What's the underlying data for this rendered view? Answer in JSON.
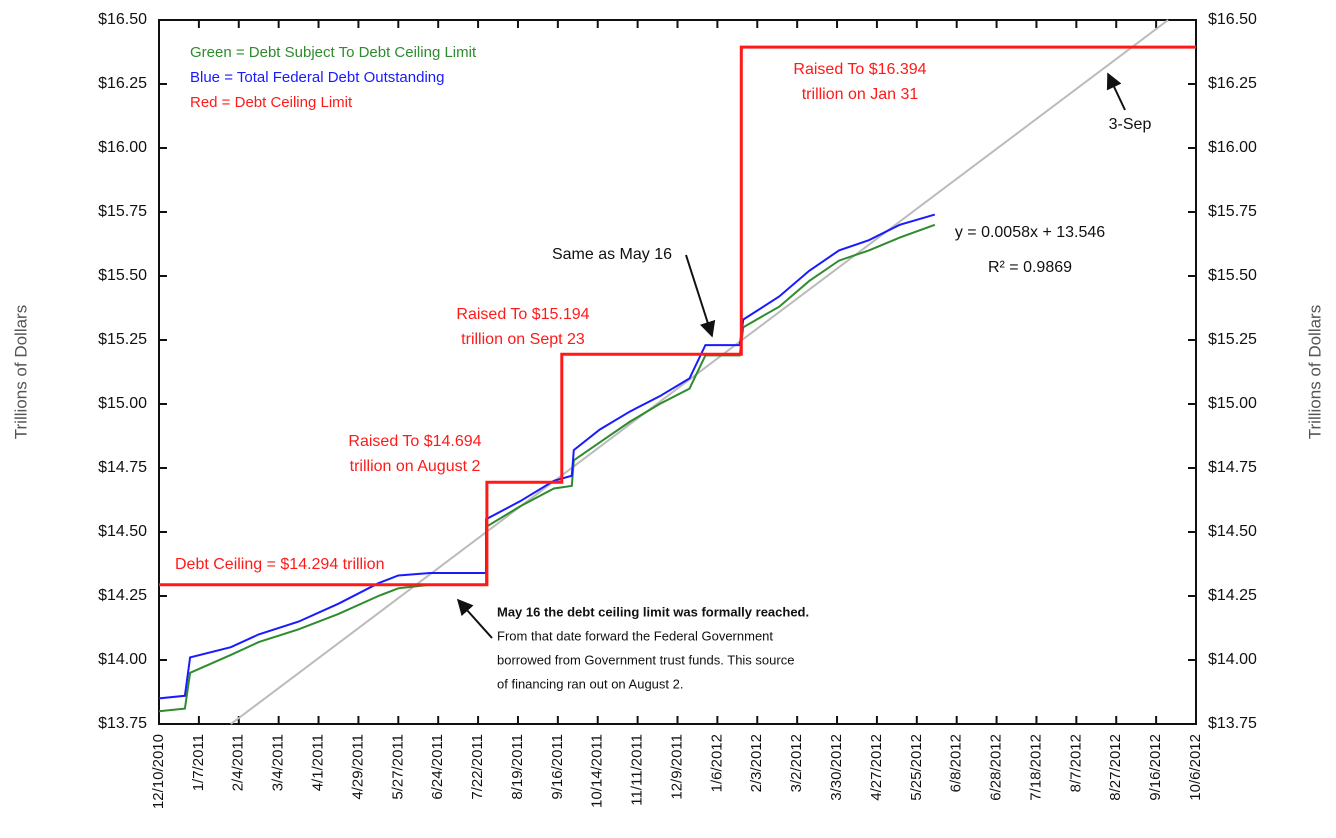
{
  "chart_data": {
    "type": "line",
    "ylabel": "Trillions of Dollars",
    "y2label": "Trillions of Dollars",
    "ylim": [
      13.75,
      16.5
    ],
    "yticks": [
      {
        "value": 13.75,
        "label": "$13.75"
      },
      {
        "value": 14.0,
        "label": "$14.00"
      },
      {
        "value": 14.25,
        "label": "$14.25"
      },
      {
        "value": 14.5,
        "label": "$14.50"
      },
      {
        "value": 14.75,
        "label": "$14.75"
      },
      {
        "value": 15.0,
        "label": "$15.00"
      },
      {
        "value": 15.25,
        "label": "$15.25"
      },
      {
        "value": 15.5,
        "label": "$15.50"
      },
      {
        "value": 15.75,
        "label": "$15.75"
      },
      {
        "value": 16.0,
        "label": "$16.00"
      },
      {
        "value": 16.25,
        "label": "$16.25"
      },
      {
        "value": 16.5,
        "label": "$16.50"
      }
    ],
    "y2lim": [
      13.75,
      16.5
    ],
    "y2ticks": [
      {
        "value": 13.75,
        "label": "$13.75"
      },
      {
        "value": 14.0,
        "label": "$14.00"
      },
      {
        "value": 14.25,
        "label": "$14.25"
      },
      {
        "value": 14.5,
        "label": "$14.50"
      },
      {
        "value": 14.75,
        "label": "$14.75"
      },
      {
        "value": 15.0,
        "label": "$15.00"
      },
      {
        "value": 15.25,
        "label": "$15.25"
      },
      {
        "value": 15.5,
        "label": "$15.50"
      },
      {
        "value": 15.75,
        "label": "$15.75"
      },
      {
        "value": 16.0,
        "label": "$16.00"
      },
      {
        "value": 16.25,
        "label": "$16.25"
      },
      {
        "value": 16.5,
        "label": "$16.50"
      }
    ],
    "xlim": [
      0,
      26
    ],
    "xticks": [
      {
        "value": 0,
        "label": "12/10/2010"
      },
      {
        "value": 1,
        "label": "1/7/2011"
      },
      {
        "value": 2,
        "label": "2/4/2011"
      },
      {
        "value": 3,
        "label": "3/4/2011"
      },
      {
        "value": 4,
        "label": "4/1/2011"
      },
      {
        "value": 5,
        "label": "4/29/2011"
      },
      {
        "value": 6,
        "label": "5/27/2011"
      },
      {
        "value": 7,
        "label": "6/24/2011"
      },
      {
        "value": 8,
        "label": "7/22/2011"
      },
      {
        "value": 9,
        "label": "8/19/2011"
      },
      {
        "value": 10,
        "label": "9/16/2011"
      },
      {
        "value": 11,
        "label": "10/14/2011"
      },
      {
        "value": 12,
        "label": "11/11/2011"
      },
      {
        "value": 13,
        "label": "12/9/2011"
      },
      {
        "value": 14,
        "label": "1/6/2012"
      },
      {
        "value": 15,
        "label": "2/3/2012"
      },
      {
        "value": 16,
        "label": "3/2/2012"
      },
      {
        "value": 17,
        "label": "3/30/2012"
      },
      {
        "value": 18,
        "label": "4/27/2012"
      },
      {
        "value": 19,
        "label": "5/25/2012"
      },
      {
        "value": 20,
        "label": "6/8/2012"
      },
      {
        "value": 21,
        "label": "6/28/2012"
      },
      {
        "value": 22,
        "label": "7/18/2012"
      },
      {
        "value": 23,
        "label": "8/7/2012"
      },
      {
        "value": 24,
        "label": "8/27/2012"
      },
      {
        "value": 25,
        "label": "9/16/2012"
      },
      {
        "value": 26,
        "label": "10/6/2012"
      }
    ],
    "trendline": {
      "color": "#bbbbbb",
      "x": [
        1.8,
        25.3
      ],
      "values": [
        13.75,
        16.5
      ]
    },
    "series": [
      {
        "name": "Green = Debt Subject To Debt Ceiling Limit",
        "color": "#2e8b2e",
        "x": [
          0,
          0.65,
          0.78,
          1.8,
          2.5,
          3.5,
          4.5,
          5.5,
          6.0,
          6.8,
          8.2,
          8.2,
          9.05,
          9.9,
          10.35,
          10.4,
          11.05,
          11.8,
          12.55,
          13.3,
          13.7,
          14.56,
          14.65,
          15.55,
          16.3,
          17.05,
          17.8,
          18.57,
          19.45
        ],
        "values": [
          13.8,
          13.81,
          13.95,
          14.02,
          14.07,
          14.12,
          14.18,
          14.25,
          14.28,
          14.294,
          14.294,
          14.52,
          14.6,
          14.67,
          14.68,
          14.78,
          14.85,
          14.93,
          15.0,
          15.06,
          15.19,
          15.19,
          15.3,
          15.38,
          15.48,
          15.56,
          15.6,
          15.65,
          15.7
        ]
      },
      {
        "name": "Blue = Total Federal Debt Outstanding",
        "color": "#1a1aff",
        "x": [
          0,
          0.65,
          0.78,
          1.8,
          2.5,
          3.5,
          4.5,
          5.5,
          6.0,
          6.8,
          8.2,
          8.2,
          9.05,
          9.9,
          10.35,
          10.4,
          11.05,
          11.8,
          12.55,
          13.3,
          13.7,
          14.56,
          14.65,
          15.55,
          16.3,
          17.05,
          17.8,
          18.57,
          19.45
        ],
        "values": [
          13.85,
          13.86,
          14.01,
          14.05,
          14.1,
          14.15,
          14.22,
          14.3,
          14.33,
          14.34,
          14.34,
          14.55,
          14.62,
          14.7,
          14.72,
          14.82,
          14.9,
          14.97,
          15.03,
          15.1,
          15.23,
          15.23,
          15.33,
          15.42,
          15.52,
          15.6,
          15.64,
          15.7,
          15.74
        ]
      },
      {
        "name": "Red = Debt Ceiling Limit",
        "color": "#ff1a1a",
        "x": [
          0,
          8.22,
          8.22,
          10.1,
          10.1,
          14.6,
          14.6,
          26
        ],
        "values": [
          14.294,
          14.294,
          14.694,
          14.694,
          15.194,
          15.194,
          16.394,
          16.394
        ]
      }
    ],
    "annotations": [
      {
        "lines": [
          "Raised To $16.394",
          "trillion on Jan 31"
        ]
      },
      {
        "lines": [
          "3-Sep"
        ]
      },
      {
        "lines": [
          "y = 0.0058x + 13.546"
        ]
      },
      {
        "lines": [
          "R² = 0.9869"
        ]
      },
      {
        "lines": [
          "Same as May 16"
        ]
      },
      {
        "lines": [
          "Raised To $15.194",
          "trillion on Sept 23"
        ]
      },
      {
        "lines": [
          "Raised To $14.694",
          "trillion on August 2"
        ]
      },
      {
        "lines": [
          "Debt Ceiling = $14.294 trillion"
        ]
      },
      {
        "lines": [
          "May 16 the debt ceiling limit was formally reached.",
          "From that date forward the Federal Government",
          "borrowed from Government trust funds.  This source",
          "of financing ran out on August 2."
        ]
      }
    ]
  }
}
